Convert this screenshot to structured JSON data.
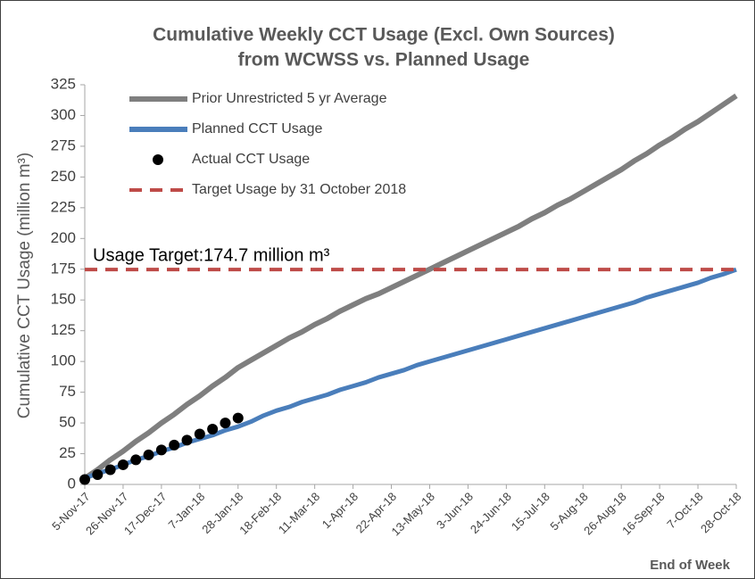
{
  "chart_data": {
    "type": "line",
    "title": [
      "Cumulative Weekly CCT Usage (Excl. Own Sources)",
      "from WCWSS vs. Planned Usage"
    ],
    "y_label": "Cumulative CCT Usage (million m³)",
    "x_label": "End of Week",
    "annotation": "Usage Target:174.7 million m³",
    "categories": [
      "5-Nov-17",
      null,
      null,
      "26-Nov-17",
      null,
      null,
      "17-Dec-17",
      null,
      null,
      "7-Jan-18",
      null,
      null,
      "28-Jan-18",
      null,
      null,
      "18-Feb-18",
      null,
      null,
      "11-Mar-18",
      null,
      null,
      "1-Apr-18",
      null,
      null,
      "22-Apr-18",
      null,
      null,
      "13-May-18",
      null,
      null,
      "3-Jun-18",
      null,
      null,
      "24-Jun-18",
      null,
      null,
      "15-Jul-18",
      null,
      null,
      "5-Aug-18",
      null,
      null,
      "26-Aug-18",
      null,
      null,
      "16-Sep-18",
      null,
      null,
      "7-Oct-18",
      null,
      null,
      "28-Oct-18"
    ],
    "series": [
      {
        "name": "Prior Unrestricted 5 yr Average",
        "type": "line",
        "color": "#7f7f7f",
        "values": [
          5,
          12,
          20,
          27,
          35,
          42,
          50,
          57,
          65,
          72,
          80,
          87,
          95,
          101,
          107,
          113,
          119,
          124,
          130,
          135,
          141,
          146,
          151,
          155,
          160,
          165,
          170,
          175,
          180,
          185,
          190,
          195,
          200,
          205,
          210,
          216,
          221,
          227,
          232,
          238,
          244,
          250,
          256,
          263,
          269,
          276,
          282,
          289,
          295,
          302,
          309,
          316
        ]
      },
      {
        "name": "Planned CCT Usage",
        "type": "line",
        "color": "#4a7ebb",
        "values": [
          5,
          9,
          12,
          16,
          20,
          23,
          27,
          30,
          34,
          37,
          40,
          44,
          47,
          51,
          56,
          60,
          63,
          67,
          70,
          73,
          77,
          80,
          83,
          87,
          90,
          93,
          97,
          100,
          103,
          106,
          109,
          112,
          115,
          118,
          121,
          124,
          127,
          130,
          133,
          136,
          139,
          142,
          145,
          148,
          152,
          155,
          158,
          161,
          164,
          168,
          171,
          174.7
        ]
      },
      {
        "name": "Actual CCT Usage",
        "type": "scatter",
        "color": "#000000",
        "values": [
          4,
          8,
          12,
          16,
          20,
          24,
          28,
          32,
          36,
          41,
          45,
          50,
          54,
          null,
          null,
          null,
          null,
          null,
          null,
          null,
          null,
          null,
          null,
          null,
          null,
          null,
          null,
          null,
          null,
          null,
          null,
          null,
          null,
          null,
          null,
          null,
          null,
          null,
          null,
          null,
          null,
          null,
          null,
          null,
          null,
          null,
          null,
          null,
          null,
          null,
          null,
          null
        ]
      },
      {
        "name": "Target Usage by 31 October 2018",
        "type": "hline",
        "color": "#be4b48",
        "value": 174.7
      }
    ],
    "ylim": [
      0,
      325
    ],
    "yticks": [
      0,
      25,
      50,
      75,
      100,
      125,
      150,
      175,
      200,
      225,
      250,
      275,
      300,
      325
    ],
    "grid": false
  }
}
